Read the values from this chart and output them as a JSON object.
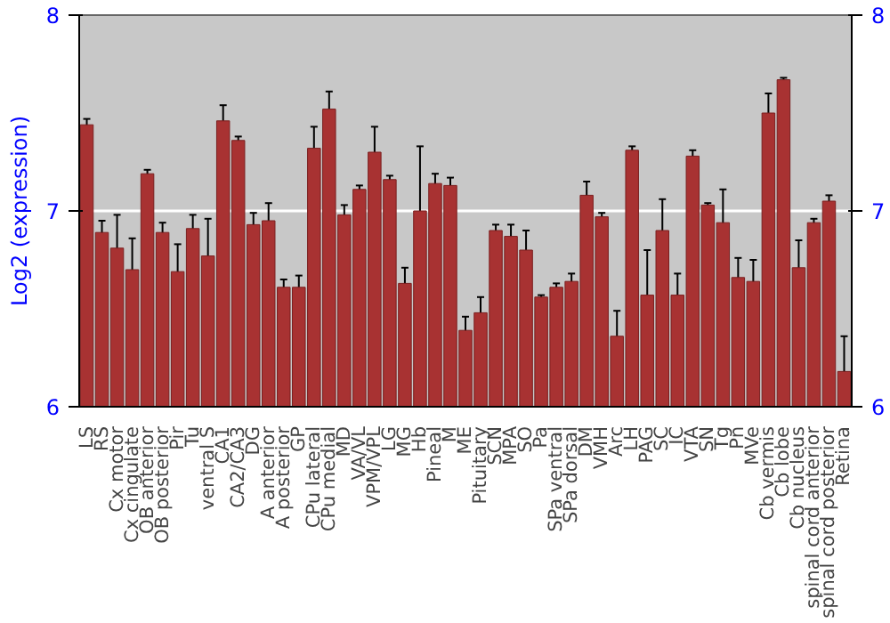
{
  "chart_data": {
    "type": "bar",
    "ylabel": "Log2 (expression)",
    "categories": [
      "LS",
      "RS",
      "Cx motor",
      "Cx cingulate",
      "OB anterior",
      "OB posterior",
      "Pir",
      "Tu",
      "ventral S",
      "CA1",
      "CA2/CA3",
      "DG",
      "A anterior",
      "A posterior",
      "GP",
      "CPu lateral",
      "CPu medial",
      "MD",
      "VA/VL",
      "VPM/VPL",
      "LG",
      "MG",
      "Hb",
      "Pineal",
      "M",
      "ME",
      "Pituitary",
      "SCN",
      "MPA",
      "SO",
      "Pa",
      "SPa ventral",
      "SPa dorsal",
      "DM",
      "VMH",
      "Arc",
      "LH",
      "PAG",
      "SC",
      "IC",
      "VTA",
      "SN",
      "Tg",
      "Pn",
      "MVe",
      "Cb vermis",
      "Cb lobe",
      "Cb nucleus",
      "spinal cord anterior",
      "spinal cord posterior",
      "Retina"
    ],
    "values": [
      7.44,
      6.89,
      6.81,
      6.7,
      7.19,
      6.89,
      6.69,
      6.91,
      6.77,
      7.46,
      7.36,
      6.93,
      6.95,
      6.61,
      6.61,
      7.32,
      7.52,
      6.98,
      7.11,
      7.3,
      7.16,
      6.63,
      7.0,
      7.14,
      7.13,
      6.39,
      6.48,
      6.9,
      6.87,
      6.8,
      6.56,
      6.61,
      6.64,
      7.08,
      6.97,
      6.36,
      7.31,
      6.57,
      6.9,
      6.57,
      7.28,
      7.03,
      6.94,
      6.66,
      6.64,
      7.5,
      7.67,
      6.71,
      6.94,
      7.05,
      6.18
    ],
    "errors": [
      0.03,
      0.06,
      0.17,
      0.16,
      0.02,
      0.05,
      0.14,
      0.07,
      0.19,
      0.08,
      0.02,
      0.06,
      0.09,
      0.04,
      0.06,
      0.11,
      0.09,
      0.05,
      0.02,
      0.13,
      0.02,
      0.08,
      0.33,
      0.05,
      0.04,
      0.07,
      0.08,
      0.03,
      0.06,
      0.1,
      0.01,
      0.02,
      0.04,
      0.07,
      0.02,
      0.13,
      0.02,
      0.23,
      0.16,
      0.11,
      0.03,
      0.01,
      0.17,
      0.1,
      0.11,
      0.1,
      0.01,
      0.14,
      0.02,
      0.03,
      0.18
    ],
    "color": "#a83232",
    "ylim": [
      6,
      8
    ],
    "yticks": [
      6,
      7,
      8
    ],
    "y2lim": [
      6,
      8
    ],
    "y2ticks": [
      6,
      7,
      8
    ],
    "grid": "y"
  }
}
